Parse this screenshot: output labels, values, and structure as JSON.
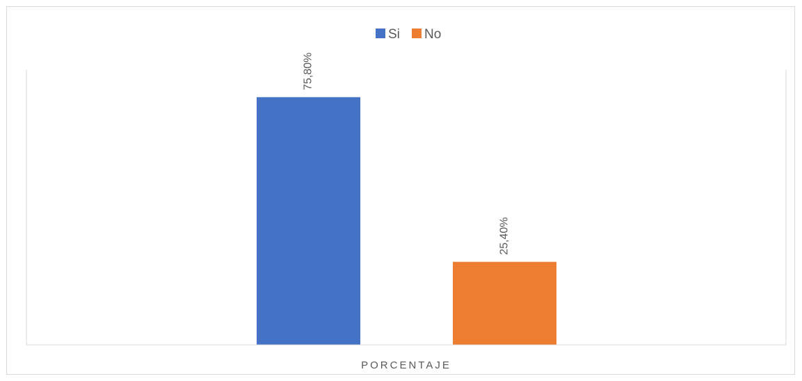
{
  "chart_data": {
    "type": "bar",
    "categories": [
      "PORCENTAJE"
    ],
    "series": [
      {
        "name": "Si",
        "values": [
          75.8
        ],
        "label": "75,80%",
        "color": "#4472C4"
      },
      {
        "name": "No",
        "values": [
          25.4
        ],
        "label": "25,40%",
        "color": "#ED7D31"
      }
    ],
    "ylim": [
      0,
      80
    ],
    "grid": false,
    "legend_position": "top"
  }
}
